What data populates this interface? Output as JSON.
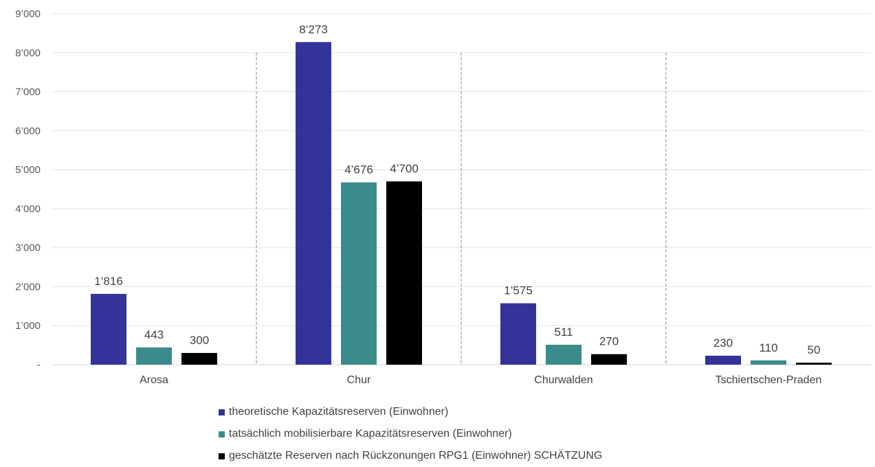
{
  "chart_data": {
    "type": "bar",
    "categories": [
      "Arosa",
      "Chur",
      "Churwalden",
      "Tschiertschen-Praden"
    ],
    "series": [
      {
        "name": "theoretische Kapazitätsreserven (Einwohner)",
        "color": "#33339a",
        "values": [
          1816,
          8273,
          1575,
          230
        ]
      },
      {
        "name": "tatsächlich mobilisierbare Kapazitätsreserven (Einwohner)",
        "color": "#3b8b8c",
        "values": [
          443,
          4676,
          511,
          110
        ]
      },
      {
        "name": "geschätzte Reserven nach Rückzonungen RPG1 (Einwohner) SCHÄTZUNG",
        "color": "#000000",
        "values": [
          300,
          4700,
          270,
          50
        ]
      }
    ],
    "data_labels": [
      [
        "1’816",
        "8’273",
        "1’575",
        "230"
      ],
      [
        "443",
        "4’676",
        "511",
        "110"
      ],
      [
        "300",
        "4’700",
        "270",
        "50"
      ]
    ],
    "y_ticks": [
      {
        "value": 0,
        "label": "-"
      },
      {
        "value": 1000,
        "label": "1’000"
      },
      {
        "value": 2000,
        "label": "2’000"
      },
      {
        "value": 3000,
        "label": "3’000"
      },
      {
        "value": 4000,
        "label": "4’000"
      },
      {
        "value": 5000,
        "label": "5’000"
      },
      {
        "value": 6000,
        "label": "6’000"
      },
      {
        "value": 7000,
        "label": "7’000"
      },
      {
        "value": 8000,
        "label": "8’000"
      },
      {
        "value": 9000,
        "label": "9’000"
      }
    ],
    "ylim": [
      0,
      9000
    ],
    "grid": true,
    "category_separators": "dashed",
    "legend_position": "bottom",
    "title": "",
    "xlabel": "",
    "ylabel": ""
  }
}
